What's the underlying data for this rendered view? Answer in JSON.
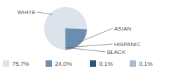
{
  "chart_data": {
    "type": "pie",
    "categories": [
      "WHITE",
      "ASIAN",
      "HISPANIC",
      "BLACK"
    ],
    "values": [
      75.7,
      24.0,
      0.1,
      0.1
    ],
    "value_labels": [
      "75.7%",
      "24.0%",
      "0.1%",
      "0.1%"
    ],
    "colors": [
      "#dce3ea",
      "#6b8db0",
      "#2c5675",
      "#a8bdd1"
    ],
    "legend": "bottom"
  }
}
